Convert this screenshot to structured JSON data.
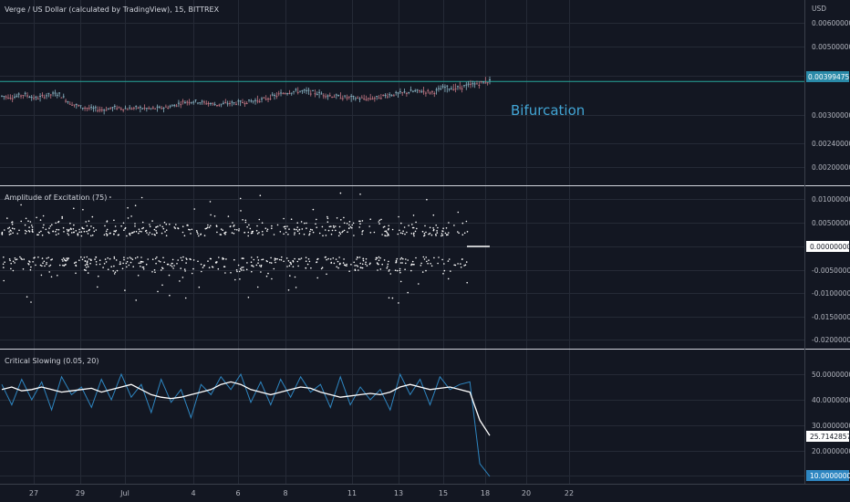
{
  "chart_data": [
    {
      "type": "line",
      "title": "Verge / US Dollar (calculated by TradingView), 15, BITTREX",
      "currency": "USD",
      "price_ticks": [
        "0.00600000",
        "0.00500000",
        "0.00300000",
        "0.00240000",
        "0.00200000"
      ],
      "last_price": "0.00399475",
      "annotation": "Bifurcation",
      "series": [
        {
          "values": [
            0.00355,
            0.00352,
            0.0036,
            0.00348,
            0.00358,
            0.00362,
            0.00335,
            0.00323,
            0.00318,
            0.00315,
            0.00322,
            0.00318,
            0.00321,
            0.00318,
            0.0032,
            0.00325,
            0.00338,
            0.0034,
            0.00335,
            0.0033,
            0.00334,
            0.00336,
            0.0034,
            0.00345,
            0.00355,
            0.00365,
            0.0037,
            0.00368,
            0.00362,
            0.00356,
            0.00352,
            0.0035,
            0.00347,
            0.0035,
            0.00358,
            0.00362,
            0.00368,
            0.0037,
            0.00366,
            0.0038,
            0.00378,
            0.00385,
            0.00392,
            0.00399
          ]
        }
      ]
    },
    {
      "type": "scatter",
      "title": "Amplitude of Excitation (75)",
      "value_ticks": [
        "0.01000000",
        "0.00500000",
        "-0.00500000",
        "-0.01000000",
        "-0.01500000",
        "-0.02000000"
      ],
      "last_value": "0.00000000",
      "ylim": [
        -0.0215,
        0.0125
      ]
    },
    {
      "type": "line",
      "title": "Critical Slowing (0.05, 20)",
      "value_ticks": [
        "50.00000000",
        "40.00000000",
        "30.00000000",
        "20.00000000"
      ],
      "last_values": [
        "25.71428571",
        "10.00000000"
      ],
      "ylim": [
        8,
        53
      ],
      "series": [
        {
          "values": [
            44,
            45,
            43.5,
            44,
            45,
            44,
            43,
            43.5,
            44,
            44.5,
            43,
            44,
            45,
            46,
            44,
            42,
            41,
            40.5,
            41,
            42,
            43,
            44,
            46,
            47,
            46,
            44,
            43,
            42,
            43,
            44,
            45,
            44.5,
            43,
            42,
            41,
            41.5,
            42,
            42.5,
            42,
            43,
            45,
            46,
            45,
            44,
            44.5,
            45,
            44,
            43,
            32,
            26
          ]
        },
        {
          "values": [
            46,
            38,
            48,
            40,
            47,
            36,
            49,
            42,
            45,
            37,
            48,
            40,
            50,
            41,
            46,
            35,
            48,
            39,
            44,
            33,
            46,
            42,
            49,
            44,
            50,
            39,
            47,
            38,
            48,
            41,
            49,
            43,
            46,
            37,
            49,
            38,
            45,
            40,
            44,
            36,
            50,
            42,
            48,
            38,
            49,
            44,
            46,
            47,
            15,
            10
          ]
        }
      ]
    }
  ],
  "x_axis": {
    "ticks": [
      "27",
      "29",
      "Jul",
      "4",
      "6",
      "8",
      "11",
      "13",
      "15",
      "18",
      "20",
      "22"
    ]
  },
  "colors": {
    "background": "#131722",
    "grid": "#252a36",
    "separator": "#d1d4dc",
    "price_line": "#26a69a",
    "price_badge": "#2a8aa8",
    "accent": "#42a5d5",
    "candle_up": "#8ab4c4",
    "candle_down": "#c27784",
    "smoothed": "#ffffff",
    "raw": "#2e86c1"
  }
}
